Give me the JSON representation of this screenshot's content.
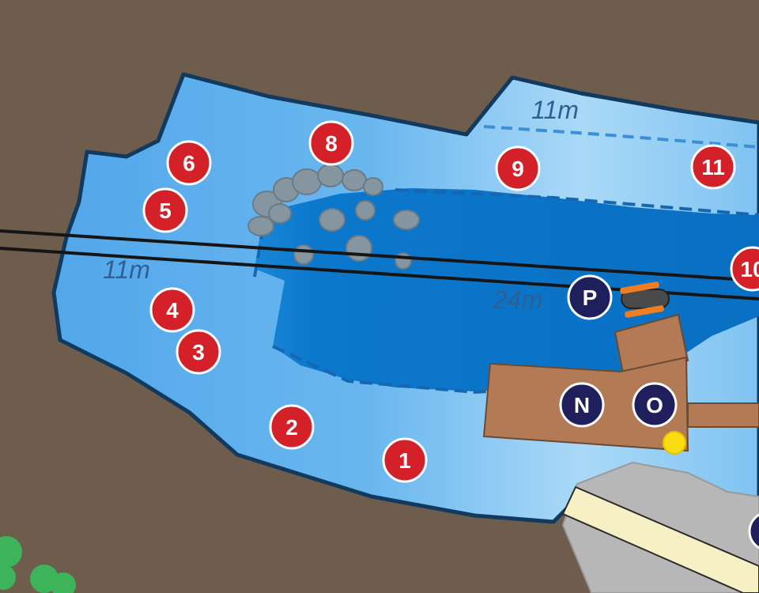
{
  "colors": {
    "ground": "#6e5d4c",
    "shallow_water": "#5fb0ec",
    "water_light": "#9fd3f6",
    "deep_water": "#0b78cc",
    "outline": "#123a5e",
    "red_marker": "#d42028",
    "blue_marker": "#1f1f5c",
    "dock": "#b27b55",
    "rock": "#8a9aa5",
    "path": "#f6f0c4",
    "concrete": "#b9b9b9",
    "tree": "#3db35a",
    "buoy": "#f7dd12"
  },
  "depth_labels": [
    "11m",
    "11m",
    "24m"
  ],
  "red_markers": [
    "1",
    "2",
    "3",
    "4",
    "5",
    "6",
    "8",
    "9",
    "10",
    "11"
  ],
  "blue_markers": [
    "N",
    "O",
    "P"
  ],
  "icons": {
    "cable": "cable-line-icon",
    "submarine": "submerged-wreck-icon",
    "buoy": "yellow-buoy-icon",
    "rocks": "rock-cluster-icon",
    "trees": "tree-icon"
  }
}
